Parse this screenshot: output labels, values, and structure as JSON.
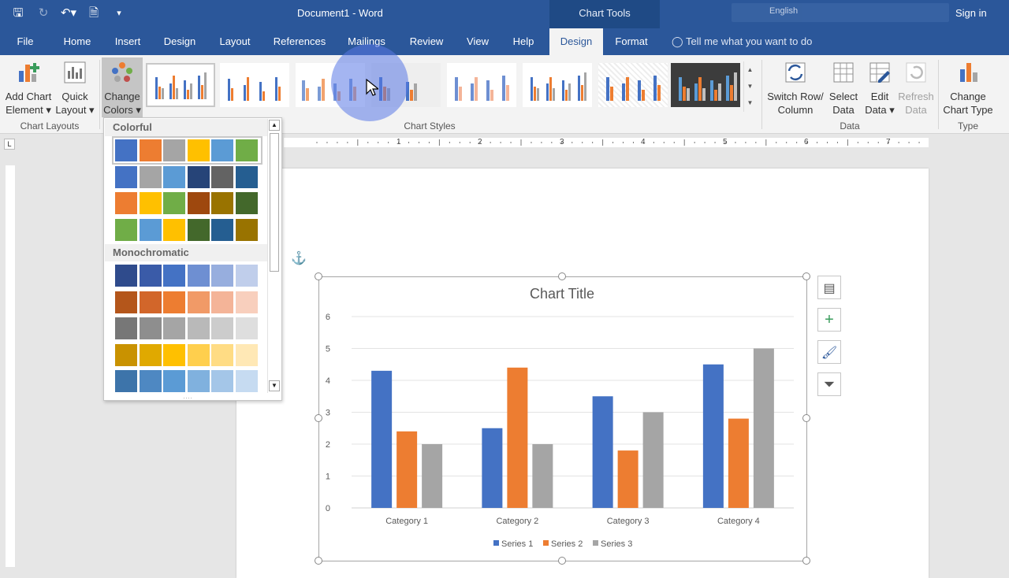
{
  "window": {
    "title": "Document1  -  Word",
    "context_tab": "Chart Tools",
    "sign_in": "Sign in",
    "language": "English"
  },
  "tabs": [
    {
      "label": "File"
    },
    {
      "label": "Home"
    },
    {
      "label": "Insert"
    },
    {
      "label": "Design"
    },
    {
      "label": "Layout"
    },
    {
      "label": "References"
    },
    {
      "label": "Mailings"
    },
    {
      "label": "Review"
    },
    {
      "label": "View"
    },
    {
      "label": "Help"
    },
    {
      "label": "Design"
    },
    {
      "label": "Format"
    }
  ],
  "tell_me": "Tell me what you want to do",
  "ribbon": {
    "add_chart_element": [
      "Add Chart",
      "Element ▾"
    ],
    "quick_layout": [
      "Quick",
      "Layout ▾"
    ],
    "change_colors": [
      "Change",
      "Colors ▾"
    ],
    "chart_layouts_label": "Chart Layouts",
    "chart_styles_label": "Chart Styles",
    "switch_row_column": [
      "Switch Row/",
      "Column"
    ],
    "select_data": [
      "Select",
      "Data"
    ],
    "edit_data": [
      "Edit",
      "Data ▾"
    ],
    "refresh_data": [
      "Refresh",
      "Data"
    ],
    "data_label": "Data",
    "change_chart_type": [
      "Change",
      "Chart Type"
    ],
    "type_label": "Type"
  },
  "color_dropdown": {
    "colorful_heading": "Colorful",
    "monochromatic_heading": "Monochromatic",
    "colorful_rows": [
      [
        "#4472c4",
        "#ed7d31",
        "#a5a5a5",
        "#ffc000",
        "#5b9bd5",
        "#70ad47"
      ],
      [
        "#4472c4",
        "#a5a5a5",
        "#5b9bd5",
        "#264478",
        "#636363",
        "#255e91"
      ],
      [
        "#ed7d31",
        "#ffc000",
        "#70ad47",
        "#9e480e",
        "#997300",
        "#43682b"
      ],
      [
        "#70ad47",
        "#5b9bd5",
        "#ffc000",
        "#43682b",
        "#255e91",
        "#997300"
      ]
    ],
    "mono_rows": [
      [
        "#2f4b8c",
        "#3a5ba8",
        "#4472c4",
        "#6e8fd2",
        "#97aede",
        "#c0ceeb"
      ],
      [
        "#b4561b",
        "#d2662a",
        "#ed7d31",
        "#f19a67",
        "#f4b498",
        "#f8cfbd"
      ],
      [
        "#777777",
        "#8e8e8e",
        "#a5a5a5",
        "#b9b9b9",
        "#cccccc",
        "#dedede"
      ],
      [
        "#c99200",
        "#e0a900",
        "#ffc000",
        "#ffcf4d",
        "#ffdc84",
        "#ffe8b5"
      ],
      [
        "#3d74aa",
        "#4e88c2",
        "#5b9bd5",
        "#80b1de",
        "#a4c6e8",
        "#c6dbf1"
      ]
    ]
  },
  "ruler_numbers": [
    "1",
    "2",
    "3",
    "4",
    "5",
    "6",
    "7"
  ],
  "chart_data": {
    "type": "bar",
    "title": "Chart Title",
    "categories": [
      "Category 1",
      "Category 2",
      "Category 3",
      "Category 4"
    ],
    "series": [
      {
        "name": "Series 1",
        "values": [
          4.3,
          2.5,
          3.5,
          4.5
        ],
        "color": "#4472c4"
      },
      {
        "name": "Series 2",
        "values": [
          2.4,
          4.4,
          1.8,
          2.8
        ],
        "color": "#ed7d31"
      },
      {
        "name": "Series 3",
        "values": [
          2,
          2,
          3,
          5
        ],
        "color": "#a5a5a5"
      }
    ],
    "ylim": [
      0,
      6
    ],
    "yticks": [
      "0",
      "1",
      "2",
      "3",
      "4",
      "5",
      "6"
    ],
    "xlabel": "",
    "ylabel": "",
    "grid": true,
    "legend": "bottom"
  }
}
